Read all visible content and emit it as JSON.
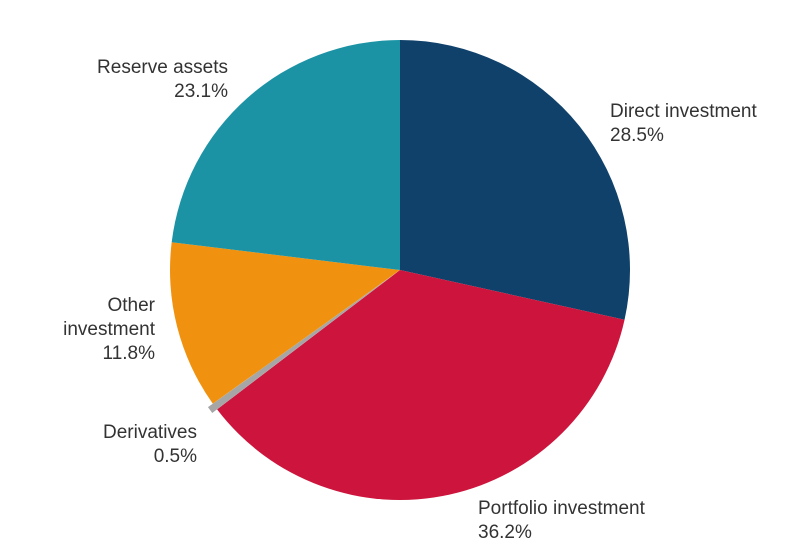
{
  "chart_data": {
    "type": "pie",
    "start": "top",
    "direction": "clockwise",
    "slices": [
      {
        "label": "Direct investment",
        "value": 28.5,
        "display": "28.5%",
        "color": "#0f416b"
      },
      {
        "label": "Portfolio investment",
        "value": 36.2,
        "display": "36.2%",
        "color": "#cc143c"
      },
      {
        "label": "Derivatives",
        "value": 0.5,
        "display": "0.5%",
        "color": "#a6a6a6",
        "exploded": true
      },
      {
        "label": "Other investment",
        "value": 11.8,
        "display": "11.8%",
        "color": "#f0920f"
      },
      {
        "label": "Reserve assets",
        "value": 23.1,
        "display": "23.1%",
        "color": "#1b93a5"
      }
    ]
  }
}
